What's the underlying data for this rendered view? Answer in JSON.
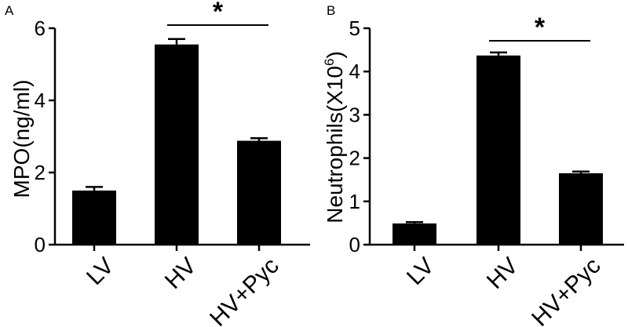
{
  "chart_data": [
    {
      "type": "bar",
      "panel": "A",
      "categories": [
        "LV",
        "HV",
        "HV+Pyc"
      ],
      "values": [
        1.5,
        5.55,
        2.88
      ],
      "errors": [
        0.1,
        0.15,
        0.07
      ],
      "ylabel": "MPO(ng/ml)",
      "ylim": [
        0,
        6
      ],
      "yticks": [
        "0",
        "2",
        "4",
        "6"
      ],
      "significance": {
        "from": 1,
        "to": 2,
        "label": "*"
      }
    },
    {
      "type": "bar",
      "panel": "B",
      "categories": [
        "LV",
        "HV",
        "HV+Pyc"
      ],
      "values": [
        0.49,
        4.37,
        1.65
      ],
      "errors": [
        0.03,
        0.07,
        0.04
      ],
      "ylabel": "Neutrophils(X10",
      "ylabel_sup": "6",
      "ylabel_close": ")",
      "ylim": [
        0,
        5
      ],
      "yticks": [
        "0",
        "1",
        "2",
        "3",
        "4",
        "5"
      ],
      "significance": {
        "from": 1,
        "to": 2,
        "label": "*"
      }
    }
  ],
  "bar_color": "#000000"
}
